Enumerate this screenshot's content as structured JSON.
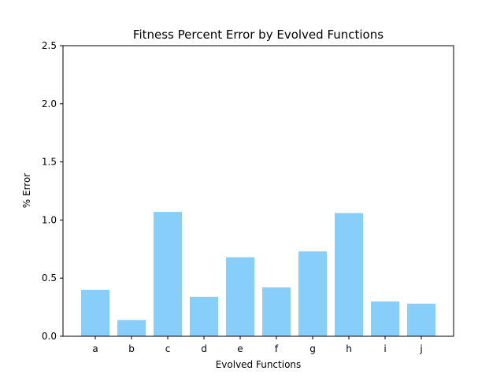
{
  "chart_data": {
    "type": "bar",
    "title": "Fitness Percent Error by Evolved Functions",
    "xlabel": "Evolved Functions",
    "ylabel": "% Error",
    "categories": [
      "a",
      "b",
      "c",
      "d",
      "e",
      "f",
      "g",
      "h",
      "i",
      "j"
    ],
    "values": [
      0.4,
      0.14,
      1.07,
      0.34,
      0.68,
      0.42,
      0.73,
      1.06,
      0.3,
      0.28
    ],
    "ylim": [
      0,
      2.5
    ],
    "yticks": [
      "0.0",
      "0.5",
      "1.0",
      "1.5",
      "2.0",
      "2.5"
    ],
    "grid": false,
    "bar_color": "#87cefa"
  }
}
